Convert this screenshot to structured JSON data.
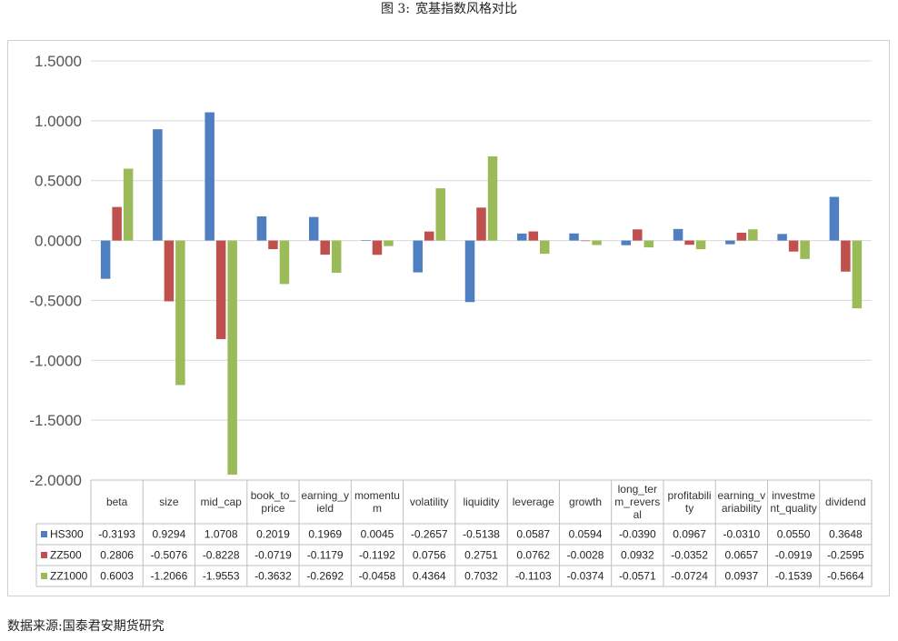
{
  "figure": {
    "title_num": "图 3:",
    "title_text": "宽基指数风格对比",
    "source": "数据来源:国泰君安期货研究"
  },
  "colors": {
    "HS300": "#4f7fc1",
    "ZZ500": "#c0504d",
    "ZZ1000": "#9bbb59",
    "grid": "#d9d9d9",
    "table_border": "#bfbfbf"
  },
  "chart_data": {
    "type": "bar",
    "title": "",
    "xlabel": "",
    "ylabel": "",
    "ylim": [
      -2.0,
      1.5
    ],
    "yticks": [
      "1.5000",
      "1.0000",
      "0.5000",
      "0.0000",
      "-0.5000",
      "-1.0000",
      "-1.5000",
      "-2.0000"
    ],
    "ytick_values": [
      1.5,
      1.0,
      0.5,
      0.0,
      -0.5,
      -1.0,
      -1.5,
      -2.0
    ],
    "grid": true,
    "legend": "data-table",
    "categories": [
      "beta",
      "size",
      "mid_cap",
      "book_to_price",
      "earning_yield",
      "momentum",
      "volatility",
      "liquidity",
      "leverage",
      "growth",
      "long_term_reversal",
      "profitability",
      "earning_variability",
      "investment_quality",
      "dividend"
    ],
    "category_lines": [
      [
        "beta"
      ],
      [
        "size"
      ],
      [
        "mid_cap"
      ],
      [
        "book_to_",
        "price"
      ],
      [
        "earning_y",
        "ield"
      ],
      [
        "momentu",
        "m"
      ],
      [
        "volatility"
      ],
      [
        "liquidity"
      ],
      [
        "leverage"
      ],
      [
        "growth"
      ],
      [
        "long_ter",
        "m_revers",
        "al"
      ],
      [
        "profitabili",
        "ty"
      ],
      [
        "earning_v",
        "ariability"
      ],
      [
        "investme",
        "nt_quality"
      ],
      [
        "dividend"
      ]
    ],
    "series": [
      {
        "name": "HS300",
        "values": [
          -0.3193,
          0.9294,
          1.0708,
          0.2019,
          0.1969,
          0.0045,
          -0.2657,
          -0.5138,
          0.0587,
          0.0594,
          -0.039,
          0.0967,
          -0.031,
          0.055,
          0.3648
        ],
        "labels": [
          "-0.3193",
          "0.9294",
          "1.0708",
          "0.2019",
          "0.1969",
          "0.0045",
          "-0.2657",
          "-0.5138",
          "0.0587",
          "0.0594",
          "-0.0390",
          "0.0967",
          "-0.0310",
          "0.0550",
          "0.3648"
        ]
      },
      {
        "name": "ZZ500",
        "values": [
          0.2806,
          -0.5076,
          -0.8228,
          -0.0719,
          -0.1179,
          -0.1192,
          0.0756,
          0.2751,
          0.0762,
          -0.0028,
          0.0932,
          -0.0352,
          0.0657,
          -0.0919,
          -0.2595
        ],
        "labels": [
          "0.2806",
          "-0.5076",
          "-0.8228",
          "-0.0719",
          "-0.1179",
          "-0.1192",
          "0.0756",
          "0.2751",
          "0.0762",
          "-0.0028",
          "0.0932",
          "-0.0352",
          "0.0657",
          "-0.0919",
          "-0.2595"
        ]
      },
      {
        "name": "ZZ1000",
        "values": [
          0.6003,
          -1.2066,
          -1.9553,
          -0.3632,
          -0.2692,
          -0.0458,
          0.4364,
          0.7032,
          -0.1103,
          -0.0374,
          -0.0571,
          -0.0724,
          0.0937,
          -0.1539,
          -0.5664
        ],
        "labels": [
          "0.6003",
          "-1.2066",
          "-1.9553",
          "-0.3632",
          "-0.2692",
          "-0.0458",
          "0.4364",
          "0.7032",
          "-0.1103",
          "-0.0374",
          "-0.0571",
          "-0.0724",
          "0.0937",
          "-0.1539",
          "-0.5664"
        ]
      }
    ]
  }
}
